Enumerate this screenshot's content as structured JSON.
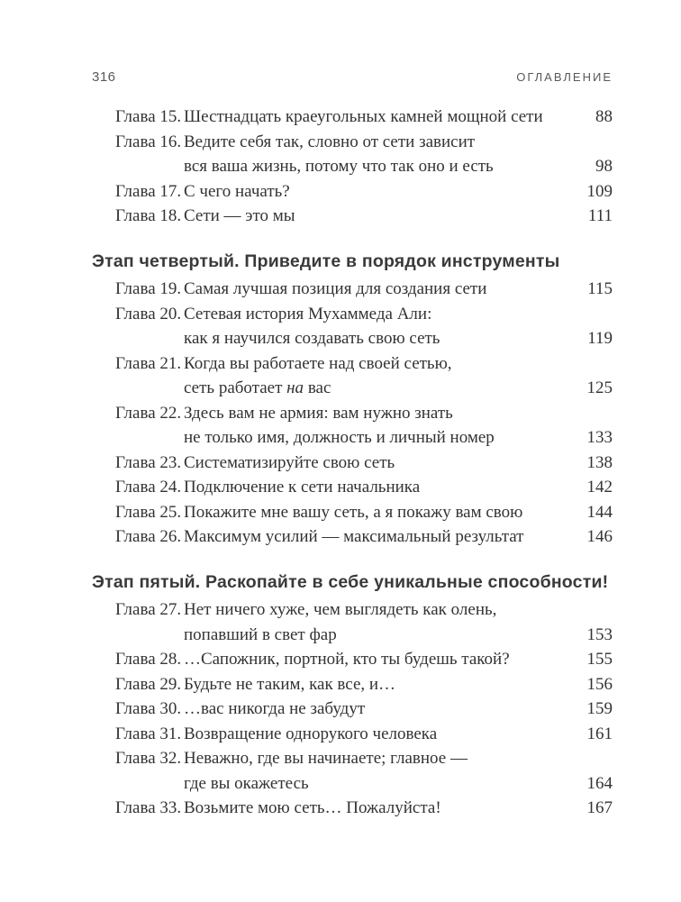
{
  "header": {
    "folio": "316",
    "running_title": "ОГЛАВЛЕНИЕ"
  },
  "toc": {
    "sections": [
      {
        "heading": null,
        "entries": [
          {
            "label": "Глава 15.",
            "lines": [
              "Шестнадцать краеугольных камней мощной сети"
            ],
            "page": "88"
          },
          {
            "label": "Глава 16.",
            "lines": [
              "Ведите себя так, словно от сети зависит",
              "вся ваша жизнь, потому что так оно и есть"
            ],
            "page": "98"
          },
          {
            "label": "Глава 17.",
            "lines": [
              "С чего начать?"
            ],
            "page": "109"
          },
          {
            "label": "Глава 18.",
            "lines": [
              "Сети — это мы"
            ],
            "page": "111"
          }
        ]
      },
      {
        "heading": "Этап четвертый. Приведите в порядок инструменты",
        "entries": [
          {
            "label": "Глава 19.",
            "lines": [
              "Самая лучшая позиция для создания сети"
            ],
            "page": "115"
          },
          {
            "label": "Глава 20.",
            "lines": [
              "Сетевая история Мухаммеда Али:",
              "как я научился создавать свою сеть"
            ],
            "page": "119"
          },
          {
            "label": "Глава 21.",
            "lines": [
              "Когда вы работаете над своей сетью,",
              "сеть работает *на* вас"
            ],
            "page": "125"
          },
          {
            "label": "Глава 22.",
            "lines": [
              "Здесь вам не армия: вам нужно знать",
              "не только имя, должность и личный номер"
            ],
            "page": "133"
          },
          {
            "label": "Глава 23.",
            "lines": [
              "Систематизируйте свою сеть"
            ],
            "page": "138"
          },
          {
            "label": "Глава 24.",
            "lines": [
              "Подключение к сети начальника"
            ],
            "page": "142"
          },
          {
            "label": "Глава 25.",
            "lines": [
              "Покажите мне вашу сеть, а я покажу вам свою"
            ],
            "page": "144"
          },
          {
            "label": "Глава 26.",
            "lines": [
              "Максимум усилий — максимальный результат"
            ],
            "page": "146"
          }
        ]
      },
      {
        "heading": "Этап пятый. Раскопайте в себе уникальные способности!",
        "entries": [
          {
            "label": "Глава 27.",
            "lines": [
              "Нет ничего хуже, чем выглядеть как олень,",
              "попавший в свет фар"
            ],
            "page": "153"
          },
          {
            "label": "Глава 28.",
            "lines": [
              "…Сапожник, портной, кто ты будешь такой?"
            ],
            "page": "155"
          },
          {
            "label": "Глава 29.",
            "lines": [
              "Будьте не таким, как все, и…"
            ],
            "page": "156"
          },
          {
            "label": "Глава 30.",
            "lines": [
              "…вас никогда не забудут"
            ],
            "page": "159"
          },
          {
            "label": "Глава 31.",
            "lines": [
              "Возвращение однорукого человека"
            ],
            "page": "161"
          },
          {
            "label": "Глава 32.",
            "lines": [
              "Неважно, где вы начинаете; главное —",
              "где вы окажетесь"
            ],
            "page": "164"
          },
          {
            "label": "Глава 33.",
            "lines": [
              "Возьмите мою сеть… Пожалуйста!"
            ],
            "page": "167"
          }
        ]
      }
    ]
  },
  "colors": {
    "background": "#ffffff",
    "body_text": "#333333",
    "heading_text": "#3a3a3a",
    "header_gray": "#58595b"
  }
}
